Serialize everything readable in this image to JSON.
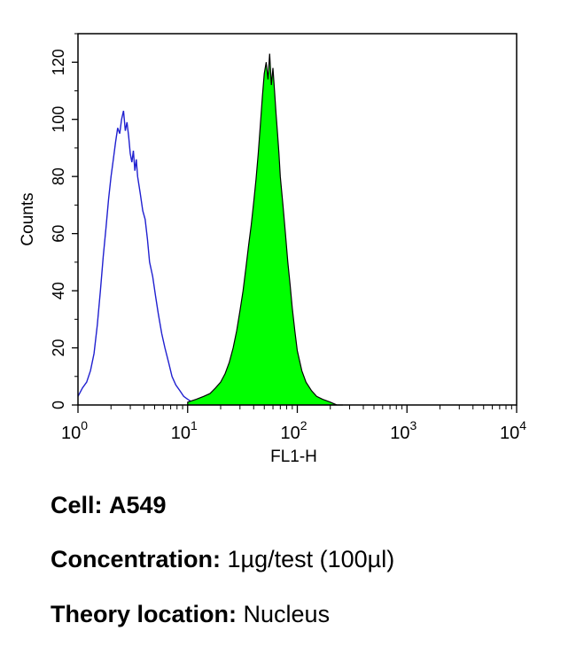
{
  "chart_data": {
    "type": "area",
    "xlabel": "FL1-H",
    "ylabel": "Counts",
    "xscale": "log",
    "xlim": [
      1,
      10000
    ],
    "ylim": [
      0,
      130
    ],
    "x_ticks": [
      {
        "value": 1,
        "base": "10",
        "exp": "0"
      },
      {
        "value": 10,
        "base": "10",
        "exp": "1"
      },
      {
        "value": 100,
        "base": "10",
        "exp": "2"
      },
      {
        "value": 1000,
        "base": "10",
        "exp": "3"
      },
      {
        "value": 10000,
        "base": "10",
        "exp": "4"
      }
    ],
    "y_ticks": [
      0,
      20,
      40,
      60,
      80,
      100,
      120
    ],
    "grid": false,
    "colors": {
      "outline": "#2020d0",
      "fill": "#00ff00",
      "axis": "#000000"
    },
    "series": [
      {
        "style": "outline",
        "color": "#2020d0",
        "x": [
          1.0,
          1.1,
          1.2,
          1.3,
          1.4,
          1.5,
          1.6,
          1.7,
          1.8,
          1.9,
          2.0,
          2.1,
          2.2,
          2.3,
          2.4,
          2.5,
          2.6,
          2.7,
          2.8,
          2.9,
          3.0,
          3.1,
          3.2,
          3.3,
          3.4,
          3.5,
          3.7,
          3.9,
          4.1,
          4.3,
          4.5,
          4.8,
          5.1,
          5.4,
          5.8,
          6.2,
          6.7,
          7.2,
          7.8,
          8.5,
          9.2,
          10.0,
          11.0,
          12.0
        ],
        "y": [
          3,
          6,
          8,
          12,
          18,
          28,
          40,
          52,
          62,
          72,
          80,
          86,
          92,
          97,
          95,
          100,
          103,
          96,
          99,
          94,
          88,
          85,
          89,
          82,
          86,
          80,
          74,
          68,
          65,
          58,
          50,
          45,
          38,
          32,
          25,
          20,
          15,
          10,
          7,
          5,
          3,
          2,
          1,
          0
        ]
      },
      {
        "style": "filled",
        "color": "#00ff00",
        "x": [
          10,
          12,
          14,
          16,
          18,
          20,
          22,
          24,
          26,
          28,
          30,
          32,
          34,
          36,
          38,
          40,
          42,
          44,
          46,
          48,
          50,
          52,
          54,
          56,
          58,
          60,
          62,
          64,
          66,
          68,
          70,
          74,
          78,
          82,
          86,
          90,
          95,
          100,
          110,
          120,
          135,
          150,
          170,
          200,
          230,
          260
        ],
        "y": [
          1,
          2,
          3,
          4,
          6,
          8,
          11,
          15,
          20,
          26,
          33,
          40,
          48,
          56,
          63,
          71,
          79,
          88,
          98,
          108,
          116,
          120,
          114,
          123,
          112,
          118,
          110,
          102,
          95,
          88,
          80,
          70,
          60,
          50,
          42,
          34,
          26,
          19,
          12,
          8,
          5,
          3,
          2,
          1,
          0,
          0
        ]
      }
    ]
  },
  "caption": {
    "cell_label": "Cell:",
    "cell_value": "A549",
    "concentration_label": "Concentration:",
    "concentration_value": "1µg/test (100µl)",
    "location_label": "Theory location:",
    "location_value": "Nucleus"
  }
}
